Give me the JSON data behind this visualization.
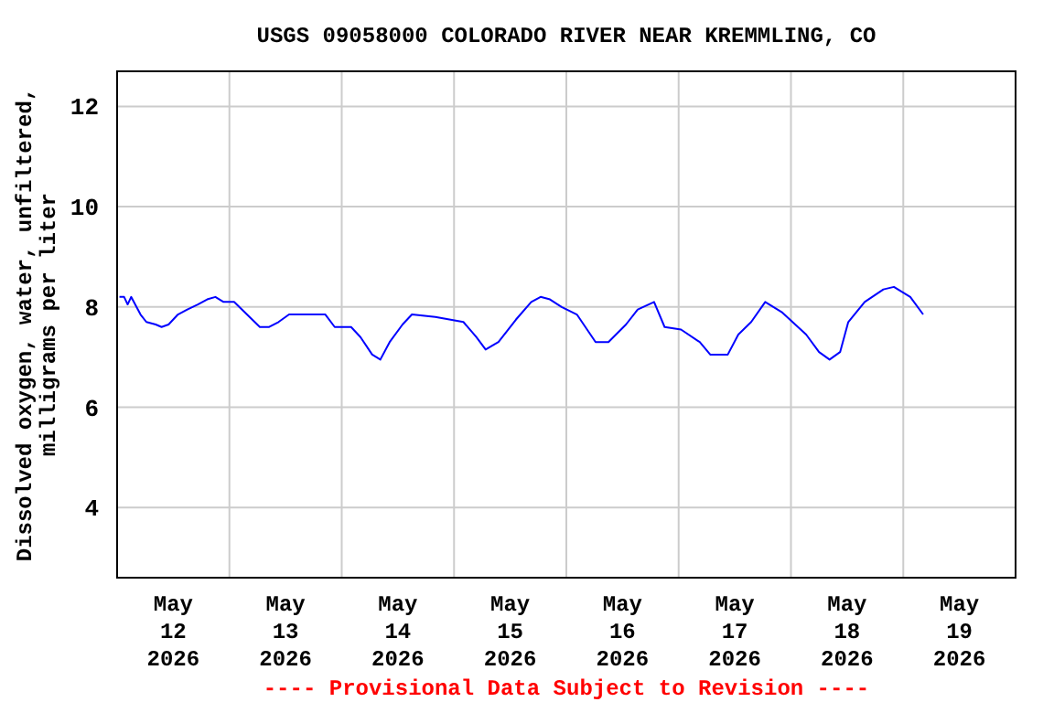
{
  "chart_data": {
    "type": "line",
    "title": "USGS 09058000 COLORADO RIVER NEAR KREMMLING, CO",
    "ylabel": "Dissolved oxygen, water, unfiltered,\nmilligrams per liter",
    "annotations": [
      "---- Provisional Data Subject to Revision ----"
    ],
    "x": [
      "2026-05-12T00:30",
      "2026-05-12T01:30",
      "2026-05-12T02:15",
      "2026-05-12T03:00",
      "2026-05-12T05:00",
      "2026-05-12T06:15",
      "2026-05-12T08:15",
      "2026-05-12T09:30",
      "2026-05-12T11:00",
      "2026-05-12T13:00",
      "2026-05-12T15:00",
      "2026-05-12T17:15",
      "2026-05-12T19:15",
      "2026-05-12T21:00",
      "2026-05-12T22:45",
      "2026-05-13T01:00",
      "2026-05-13T03:45",
      "2026-05-13T06:30",
      "2026-05-13T08:30",
      "2026-05-13T10:30",
      "2026-05-13T12:45",
      "2026-05-13T16:15",
      "2026-05-13T20:30",
      "2026-05-13T22:30",
      "2026-05-14T02:00",
      "2026-05-14T04:00",
      "2026-05-14T06:30",
      "2026-05-14T08:15",
      "2026-05-14T10:15",
      "2026-05-14T13:00",
      "2026-05-14T15:00",
      "2026-05-14T20:00",
      "2026-05-15T02:00",
      "2026-05-15T04:45",
      "2026-05-15T06:45",
      "2026-05-15T09:30",
      "2026-05-15T13:15",
      "2026-05-15T16:30",
      "2026-05-15T18:30",
      "2026-05-15T20:30",
      "2026-05-15T23:00",
      "2026-05-16T02:15",
      "2026-05-16T06:15",
      "2026-05-16T09:00",
      "2026-05-16T12:45",
      "2026-05-16T15:15",
      "2026-05-16T18:45",
      "2026-05-16T21:00",
      "2026-05-17T00:30",
      "2026-05-17T04:30",
      "2026-05-17T06:45",
      "2026-05-17T10:30",
      "2026-05-17T12:45",
      "2026-05-17T15:30",
      "2026-05-17T18:30",
      "2026-05-17T22:00",
      "2026-05-18T03:15",
      "2026-05-18T06:00",
      "2026-05-18T08:15",
      "2026-05-18T10:30",
      "2026-05-18T12:15",
      "2026-05-18T15:45",
      "2026-05-18T19:45",
      "2026-05-18T22:00",
      "2026-05-19T01:30",
      "2026-05-19T04:15"
    ],
    "series": [
      {
        "color": "#0000ff",
        "values": [
          8.2,
          8.2,
          8.05,
          8.2,
          7.85,
          7.7,
          7.65,
          7.6,
          7.65,
          7.85,
          7.95,
          8.05,
          8.15,
          8.2,
          8.1,
          8.1,
          7.85,
          7.6,
          7.6,
          7.7,
          7.85,
          7.85,
          7.85,
          7.6,
          7.6,
          7.4,
          7.05,
          6.95,
          7.3,
          7.65,
          7.85,
          7.8,
          7.7,
          7.4,
          7.15,
          7.3,
          7.75,
          8.1,
          8.2,
          8.15,
          8.0,
          7.85,
          7.3,
          7.3,
          7.65,
          7.95,
          8.1,
          7.6,
          7.55,
          7.3,
          7.05,
          7.05,
          7.45,
          7.7,
          8.1,
          7.9,
          7.45,
          7.1,
          6.95,
          7.1,
          7.7,
          8.1,
          8.35,
          8.4,
          8.2,
          7.85
        ]
      }
    ],
    "xlim": [
      "2026-05-12T00:00",
      "2026-05-20T00:00"
    ],
    "xticks": [
      {
        "value": "2026-05-12T12:00",
        "label": "May 12 2026"
      },
      {
        "value": "2026-05-13T00:00",
        "label": null
      },
      {
        "value": "2026-05-13T12:00",
        "label": "May 13 2026"
      },
      {
        "value": "2026-05-14T00:00",
        "label": null
      },
      {
        "value": "2026-05-14T12:00",
        "label": "May 14 2026"
      },
      {
        "value": "2026-05-15T00:00",
        "label": null
      },
      {
        "value": "2026-05-15T12:00",
        "label": "May 15 2026"
      },
      {
        "value": "2026-05-16T00:00",
        "label": null
      },
      {
        "value": "2026-05-16T12:00",
        "label": "May 16 2026"
      },
      {
        "value": "2026-05-17T00:00",
        "label": null
      },
      {
        "value": "2026-05-17T12:00",
        "label": "May 17 2026"
      },
      {
        "value": "2026-05-18T00:00",
        "label": null
      },
      {
        "value": "2026-05-18T12:00",
        "label": "May 18 2026"
      },
      {
        "value": "2026-05-19T00:00",
        "label": null
      },
      {
        "value": "2026-05-19T12:00",
        "label": "May 19 2026"
      }
    ],
    "ylim": [
      2.6,
      12.7
    ],
    "yticks": [
      4,
      6,
      8,
      10,
      12
    ],
    "grid": true,
    "marker": "none",
    "line_style": "solid"
  }
}
